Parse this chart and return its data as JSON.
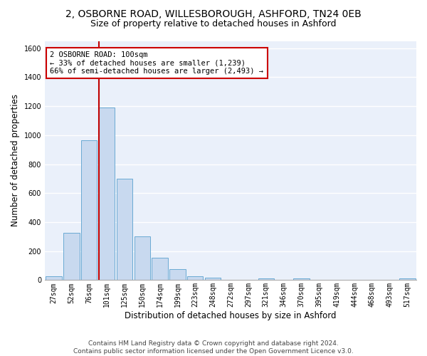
{
  "title1": "2, OSBORNE ROAD, WILLESBOROUGH, ASHFORD, TN24 0EB",
  "title2": "Size of property relative to detached houses in Ashford",
  "xlabel": "Distribution of detached houses by size in Ashford",
  "ylabel": "Number of detached properties",
  "categories": [
    "27sqm",
    "52sqm",
    "76sqm",
    "101sqm",
    "125sqm",
    "150sqm",
    "174sqm",
    "199sqm",
    "223sqm",
    "248sqm",
    "272sqm",
    "297sqm",
    "321sqm",
    "346sqm",
    "370sqm",
    "395sqm",
    "419sqm",
    "444sqm",
    "468sqm",
    "493sqm",
    "517sqm"
  ],
  "values": [
    25,
    325,
    965,
    1190,
    700,
    300,
    155,
    75,
    25,
    15,
    0,
    0,
    10,
    0,
    10,
    0,
    0,
    0,
    0,
    0,
    10
  ],
  "bar_color": "#c8d9ef",
  "bar_edge_color": "#6aaad4",
  "vline_x": 2.575,
  "vline_color": "#c00000",
  "annotation_text": "2 OSBORNE ROAD: 100sqm\n← 33% of detached houses are smaller (1,239)\n66% of semi-detached houses are larger (2,493) →",
  "annotation_box_color": "white",
  "annotation_box_edge": "#cc0000",
  "ylim": [
    0,
    1650
  ],
  "yticks": [
    0,
    200,
    400,
    600,
    800,
    1000,
    1200,
    1400,
    1600
  ],
  "footer": "Contains HM Land Registry data © Crown copyright and database right 2024.\nContains public sector information licensed under the Open Government Licence v3.0.",
  "bg_color": "#eaf0fa",
  "grid_color": "white",
  "title1_fontsize": 10,
  "title2_fontsize": 9,
  "xlabel_fontsize": 8.5,
  "ylabel_fontsize": 8.5,
  "tick_fontsize": 7,
  "footer_fontsize": 6.5,
  "annotation_fontsize": 7.5
}
